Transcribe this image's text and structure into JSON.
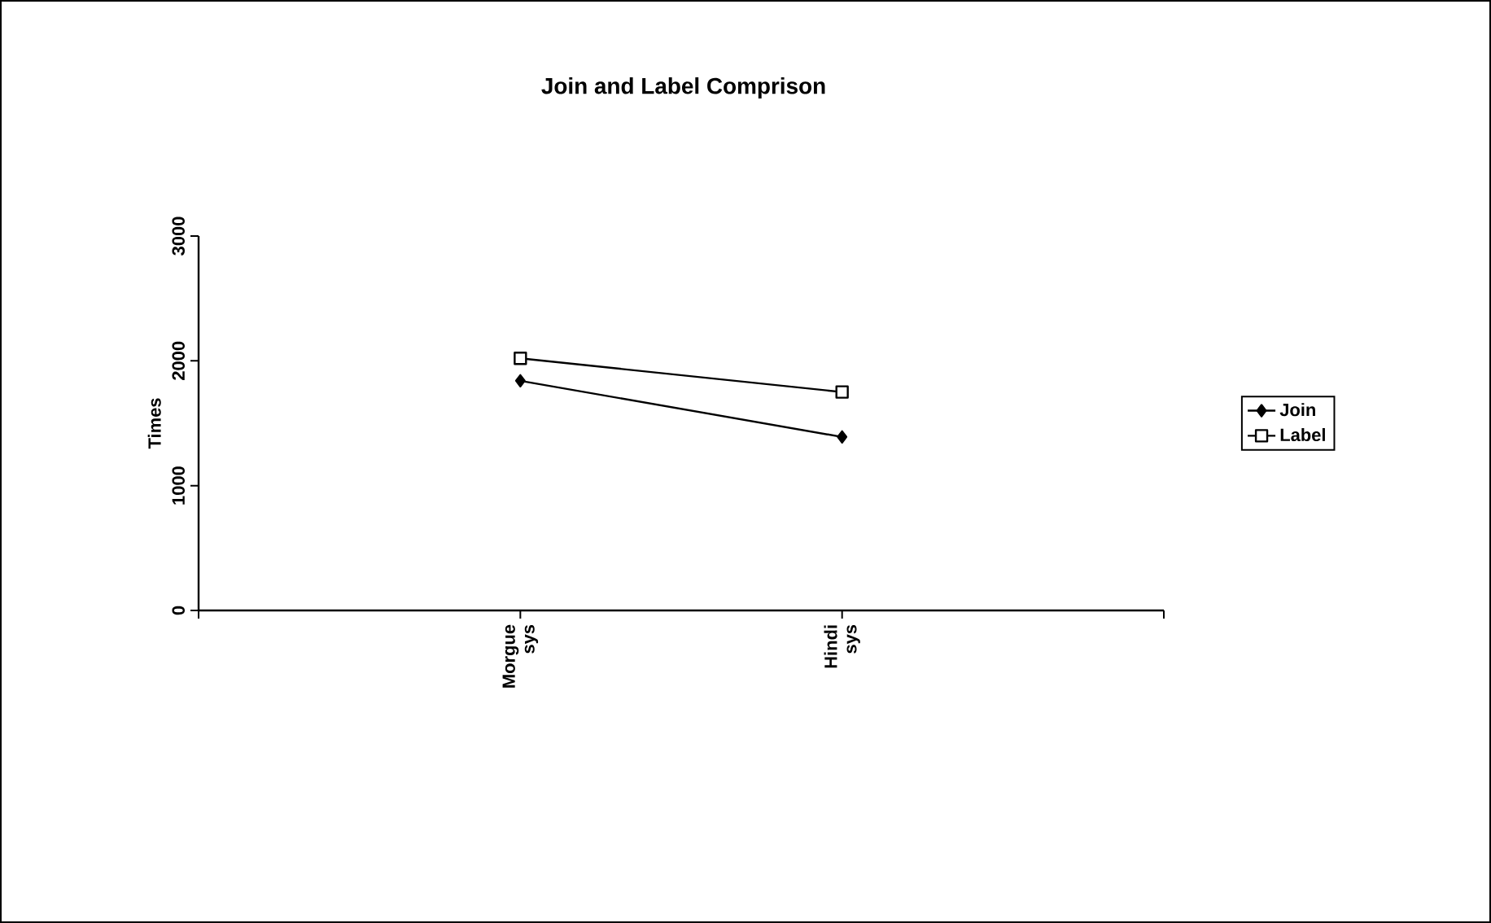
{
  "chart_data": {
    "type": "line",
    "title": "Join and Label Comprison",
    "ylabel": "Times",
    "categories": [
      null,
      "Morgue sys",
      "Hindi sys",
      null
    ],
    "series": [
      {
        "name": "Join",
        "color": "#000000",
        "marker": "diamond",
        "values": [
          null,
          1840,
          1390,
          null
        ]
      },
      {
        "name": "Label",
        "color": "#000000",
        "marker": "square",
        "values": [
          null,
          2020,
          1750,
          null
        ]
      }
    ],
    "ylim": [
      0,
      3000
    ],
    "yticks": [
      0,
      1000,
      2000,
      3000
    ],
    "grid": false,
    "legend": "right",
    "line_style": "solid"
  }
}
